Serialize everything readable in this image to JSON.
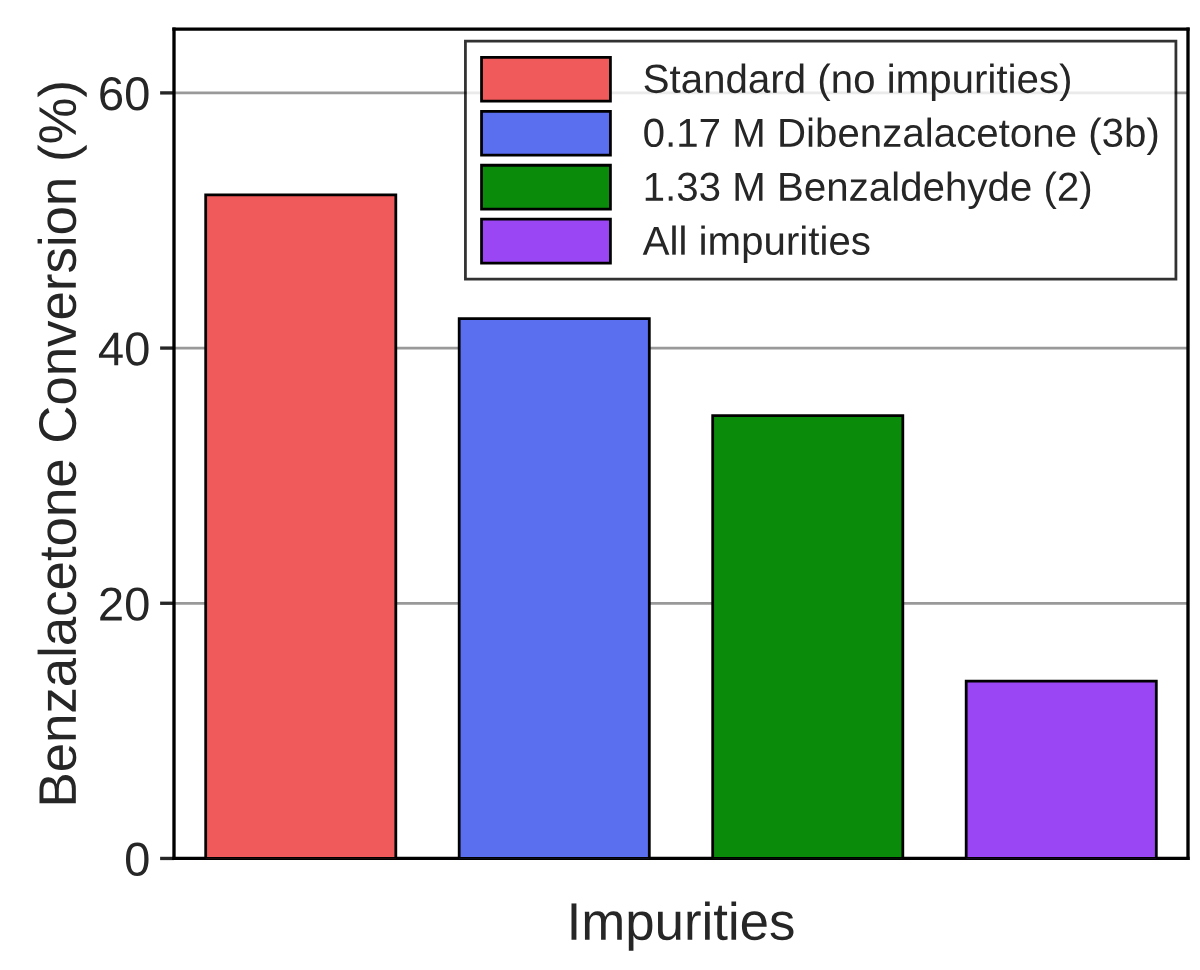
{
  "chart_data": {
    "type": "bar",
    "xlabel": "Impurities",
    "ylabel": "Benzalacetone Conversion (%)",
    "categories": [
      null,
      null,
      null,
      null
    ],
    "series": [
      {
        "name": "Standard (no impurities)",
        "color": "#f05a5a",
        "values": [
          52.0,
          null,
          null,
          null
        ]
      },
      {
        "name": "0.17 M Dibenzalacetone (3b)",
        "color": "#5a6ef0",
        "values": [
          null,
          42.3,
          null,
          null
        ]
      },
      {
        "name": "1.33 M Benzaldehyde (2)",
        "color": "#0a8c0a",
        "values": [
          null,
          null,
          34.7,
          null
        ]
      },
      {
        "name": "All impurities",
        "color": "#9b46f5",
        "values": [
          null,
          null,
          null,
          13.9
        ]
      }
    ],
    "ylim": [
      0,
      65
    ],
    "yticks": [
      0,
      20,
      40,
      60
    ],
    "grid": "y",
    "legend": "top right"
  }
}
